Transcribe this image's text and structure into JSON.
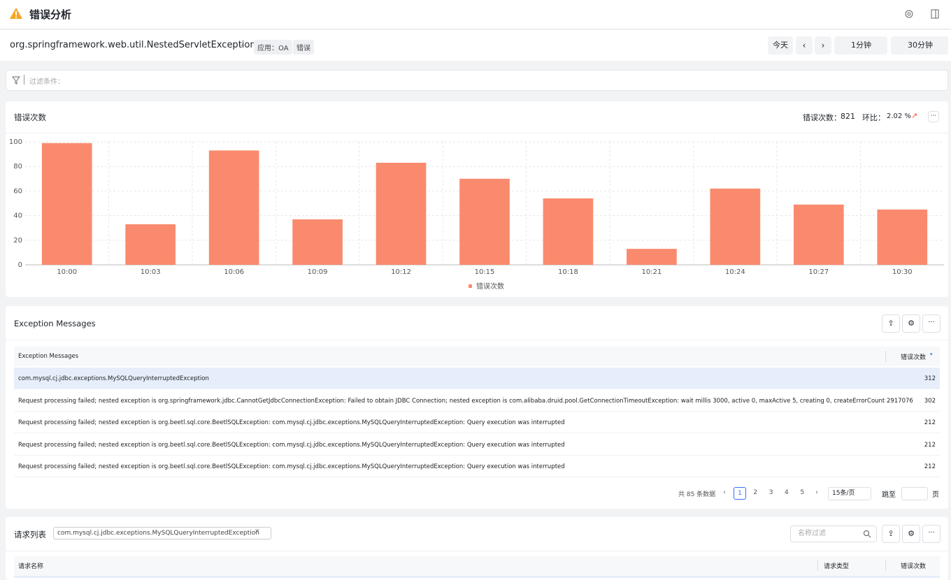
{
  "header": {
    "title": "错误分析"
  },
  "toolbar": {
    "exception_name": "org.springframework.web.util.NestedServletException",
    "tags": [
      "应用：OA",
      "错误"
    ],
    "today": "今天",
    "interval": "1分钟",
    "range": "30分钟"
  },
  "filter": {
    "placeholder": "过滤条件："
  },
  "chart_card": {
    "title": "错误次数",
    "summary_label": "错误次数：",
    "summary_value": "821",
    "ratio_label": "环比：",
    "ratio_value": "2.02 %"
  },
  "chart_data": {
    "type": "bar",
    "categories": [
      "10:00",
      "10:03",
      "10:06",
      "10:09",
      "10:12",
      "10:15",
      "10:18",
      "10:21",
      "10:24",
      "10:27",
      "10:30"
    ],
    "series": [
      {
        "name": "错误次数",
        "color": "#fa8a6e",
        "values": [
          99,
          33,
          93,
          37,
          83,
          70,
          54,
          13,
          62,
          49,
          45
        ]
      }
    ],
    "ylim": [
      0,
      100
    ],
    "yticks": [
      0,
      20,
      40,
      60,
      80,
      100
    ],
    "grid": true,
    "legend": "bottom"
  },
  "exceptions": {
    "title": "Exception Messages",
    "columns": [
      "Exception Messages",
      "错误次数"
    ],
    "rows": [
      [
        "com.mysql.cj.jdbc.exceptions.MySQLQueryInterruptedException",
        312
      ],
      [
        "Request processing failed; nested exception is org.springframework.jdbc.CannotGetJdbcConnectionException: Failed to obtain JDBC Connection; nested exception is com.alibaba.druid.pool.GetConnectionTimeoutException: wait millis 3000, active 0, maxActive 5, creating 0, createErrorCount 2917076",
        302
      ],
      [
        "Request processing failed; nested exception is org.beetl.sql.core.BeetlSQLException: com.mysql.cj.jdbc.exceptions.MySQLQueryInterruptedException: Query execution was interrupted",
        212
      ],
      [
        "Request processing failed; nested exception is org.beetl.sql.core.BeetlSQLException: com.mysql.cj.jdbc.exceptions.MySQLQueryInterruptedException: Query execution was interrupted",
        212
      ],
      [
        "Request processing failed; nested exception is org.beetl.sql.core.BeetlSQLException: com.mysql.cj.jdbc.exceptions.MySQLQueryInterruptedException: Query execution was interrupted",
        212
      ]
    ],
    "pagination": {
      "total": "共 85 条数据",
      "pages": [
        "1",
        "2",
        "3",
        "4",
        "5"
      ],
      "page_size": "15条/页",
      "jump": "跳至",
      "page_unit": "页"
    }
  },
  "requests": {
    "title": "请求列表",
    "filter_tag": "com.mysql.cj.jdbc.exceptions.MySQLQueryInterruptedException",
    "search_placeholder": "名称过滤",
    "columns": [
      "请求名称",
      "请求类型",
      "错误次数"
    ]
  }
}
